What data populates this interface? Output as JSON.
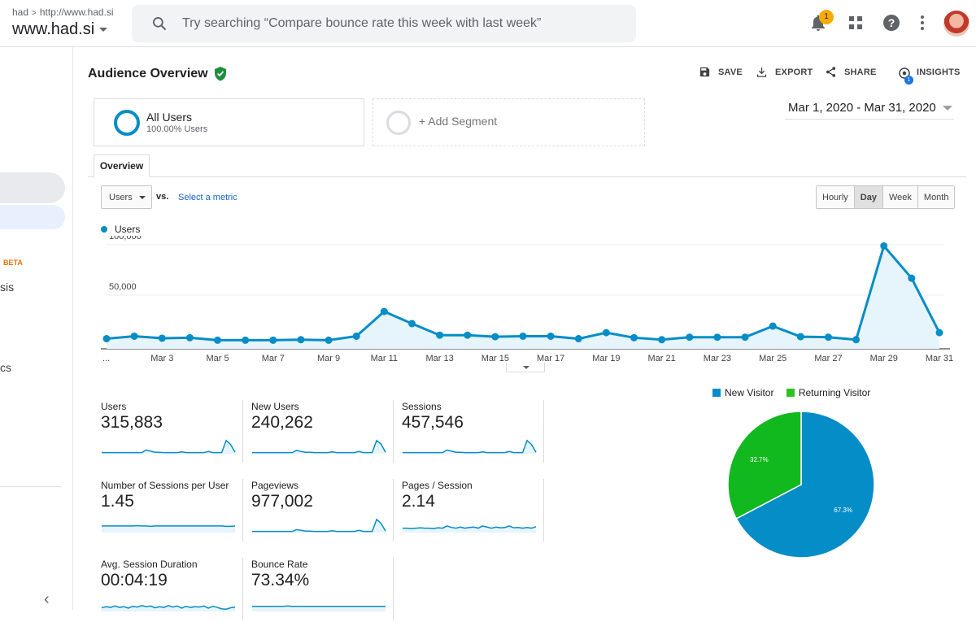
{
  "topbar": {
    "account_crumb": "had",
    "property_url": "http://www.had.si",
    "view_name": "www.had.si",
    "search_placeholder": "Try searching “Compare bounce rate this week with last week”",
    "notification_count": "1",
    "icons": [
      "search-icon",
      "bell-icon",
      "apps-grid-icon",
      "help-icon",
      "more-vert-icon",
      "avatar"
    ]
  },
  "sidebar": {
    "beta_label": "BETA",
    "fragment_1": "sis",
    "fragment_2": "cs"
  },
  "header": {
    "title": "Audience Overview",
    "save": "SAVE",
    "export": "EXPORT",
    "share": "SHARE",
    "insights": "INSIGHTS",
    "insights_badge": "1"
  },
  "segments": [
    {
      "name": "All Users",
      "sub": "100.00% Users"
    },
    {
      "name": "+ Add Segment"
    }
  ],
  "date_range": "Mar 1, 2020 - Mar 31, 2020",
  "tabs": [
    "Overview"
  ],
  "controls": {
    "metric": "Users",
    "vs": "vs.",
    "select_metric": "Select a metric",
    "granularity": [
      "Hourly",
      "Day",
      "Week",
      "Month"
    ],
    "active_granularity": "Day"
  },
  "chart_data": {
    "type": "line",
    "series": [
      {
        "name": "Users",
        "values": [
          6000,
          8500,
          6500,
          7000,
          4500,
          4500,
          4500,
          5000,
          4500,
          8500,
          33000,
          21000,
          9500,
          9500,
          8000,
          8500,
          8500,
          6000,
          12000,
          7000,
          5000,
          7500,
          7500,
          7500,
          18500,
          8000,
          7500,
          5000,
          98000,
          66000,
          12000
        ]
      }
    ],
    "x": [
      "Mar 1",
      "Mar 2",
      "Mar 3",
      "Mar 4",
      "Mar 5",
      "Mar 6",
      "Mar 7",
      "Mar 8",
      "Mar 9",
      "Mar 10",
      "Mar 11",
      "Mar 12",
      "Mar 13",
      "Mar 14",
      "Mar 15",
      "Mar 16",
      "Mar 17",
      "Mar 18",
      "Mar 19",
      "Mar 20",
      "Mar 21",
      "Mar 22",
      "Mar 23",
      "Mar 24",
      "Mar 25",
      "Mar 26",
      "Mar 27",
      "Mar 28",
      "Mar 29",
      "Mar 30",
      "Mar 31"
    ],
    "x_tick_labels": [
      "...",
      "Mar 3",
      "Mar 5",
      "Mar 7",
      "Mar 9",
      "Mar 11",
      "Mar 13",
      "Mar 15",
      "Mar 17",
      "Mar 19",
      "Mar 21",
      "Mar 23",
      "Mar 25",
      "Mar 27",
      "Mar 29",
      "Mar 31"
    ],
    "y_tick_labels": [
      "100,000",
      "50,000"
    ],
    "ylim": [
      0,
      100000
    ],
    "color": "#058dc7",
    "fill": "#e6f4fb",
    "grid": true
  },
  "metrics": [
    {
      "label": "Users",
      "value": "315,883"
    },
    {
      "label": "New Users",
      "value": "240,262"
    },
    {
      "label": "Sessions",
      "value": "457,546"
    },
    {
      "label": "Number of Sessions per User",
      "value": "1.45"
    },
    {
      "label": "Pageviews",
      "value": "977,002"
    },
    {
      "label": "Pages / Session",
      "value": "2.14"
    },
    {
      "label": "Avg. Session Duration",
      "value": "00:04:19"
    },
    {
      "label": "Bounce Rate",
      "value": "73.34%"
    }
  ],
  "pie": {
    "legend": [
      {
        "name": "New Visitor",
        "color": "#058dc7"
      },
      {
        "name": "Returning Visitor",
        "color": "#2ec027"
      }
    ],
    "slices": [
      {
        "name": "New Visitor",
        "value": 67.3,
        "label": "67.3%",
        "color": "#058dc7"
      },
      {
        "name": "Returning Visitor",
        "value": 32.7,
        "label": "32.7%",
        "color": "#11b81e"
      }
    ]
  }
}
